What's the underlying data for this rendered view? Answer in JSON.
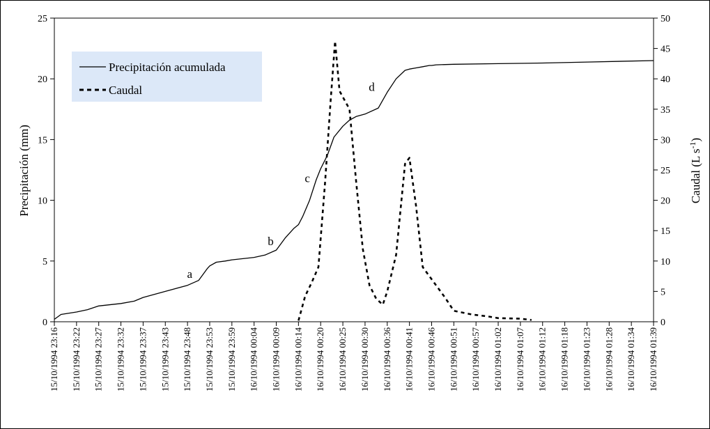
{
  "chart_data": {
    "type": "line",
    "y_left": {
      "label": "Precipitación (mm)",
      "range": [
        0,
        25
      ],
      "ticks": [
        0,
        5,
        10,
        15,
        20,
        25
      ]
    },
    "y_right": {
      "label_main": "Caudal (L s",
      "label_sup": "-1",
      "label_close": ")",
      "range": [
        0,
        50
      ],
      "ticks": [
        0,
        5,
        10,
        15,
        20,
        25,
        30,
        35,
        40,
        45,
        50
      ]
    },
    "x_labels": [
      "15/10/1994 23:16",
      "15/10/1994 23:22",
      "15/10/1994 23:27",
      "15/10/1994 23:32",
      "15/10/1994 23:37",
      "15/10/1994 23:43",
      "15/10/1994 23:48",
      "15/10/1994 23:53",
      "15/10/1994 23:59",
      "16/10/1994 00:04",
      "16/10/1994 00:09",
      "16/10/1994 00:14",
      "16/10/1994 00:20",
      "16/10/1994 00:25",
      "16/10/1994 00:30",
      "16/10/1994 00:36",
      "16/10/1994 00:41",
      "16/10/1994 00:46",
      "16/10/1994 00:51",
      "16/10/1994 00:57",
      "16/10/1994 01:02",
      "16/10/1994 01:07",
      "16/10/1994 01:12",
      "16/10/1994 01:18",
      "16/10/1994 01:23",
      "16/10/1994 01:28",
      "16/10/1994 01:34",
      "16/10/1994 01:39"
    ],
    "series": [
      {
        "name": "Precipitación acumulada",
        "axis": "left",
        "style": "solid",
        "color": "#000000",
        "x": [
          0,
          0.3,
          1,
          1.5,
          2,
          3,
          3.6,
          4,
          5,
          6,
          6.5,
          6.9,
          7,
          7.3,
          7.7,
          8,
          9,
          9.5,
          10,
          10.4,
          10.8,
          11,
          11.2,
          11.5,
          11.8,
          12,
          12.3,
          12.6,
          13,
          13.3,
          13.6,
          14,
          14.6,
          15,
          15.4,
          15.8,
          16,
          16.3,
          16.6,
          16.9,
          17,
          17.2,
          18,
          20,
          22,
          24,
          27
        ],
        "y": [
          0.2,
          0.6,
          0.8,
          1.0,
          1.3,
          1.5,
          1.7,
          2.0,
          2.5,
          3.0,
          3.4,
          4.4,
          4.6,
          4.9,
          5.0,
          5.1,
          5.3,
          5.5,
          5.9,
          6.9,
          7.7,
          8.0,
          8.7,
          10.0,
          11.7,
          12.6,
          13.7,
          15.2,
          16.1,
          16.6,
          16.9,
          17.1,
          17.6,
          18.9,
          20.0,
          20.7,
          20.8,
          20.9,
          21.0,
          21.1,
          21.1,
          21.15,
          21.2,
          21.25,
          21.3,
          21.38,
          21.5
        ]
      },
      {
        "name": "Caudal",
        "axis": "right",
        "style": "dashed",
        "color": "#000000",
        "x": [
          11,
          11.3,
          11.6,
          11.9,
          12.2,
          12.45,
          12.65,
          12.85,
          13.0,
          13.3,
          13.6,
          13.9,
          14.2,
          14.5,
          14.8,
          15.0,
          15.4,
          15.8,
          16.0,
          16.3,
          16.6,
          17.0,
          17.6,
          18.0,
          18.8,
          19.5,
          20.0,
          21.0,
          21.5
        ],
        "y": [
          0.2,
          4.2,
          6.5,
          9.0,
          23.0,
          36.5,
          46.2,
          38.0,
          37.0,
          35.0,
          23.0,
          12.0,
          6.0,
          3.8,
          2.8,
          5.0,
          11.0,
          26.0,
          27.0,
          19.0,
          9.0,
          7.0,
          4.0,
          1.8,
          1.2,
          0.9,
          0.6,
          0.5,
          0.3
        ]
      }
    ],
    "annotations": [
      {
        "text": "a",
        "x": 6.1,
        "y": 3.6
      },
      {
        "text": "b",
        "x": 9.75,
        "y": 6.3
      },
      {
        "text": "c",
        "x": 11.4,
        "y": 11.5
      },
      {
        "text": "d",
        "x": 14.3,
        "y": 19.0
      }
    ],
    "legend": {
      "placement": "top-left",
      "background": "#dce8f8",
      "items": [
        "Precipitación acumulada",
        "Caudal"
      ]
    },
    "grid": false
  }
}
